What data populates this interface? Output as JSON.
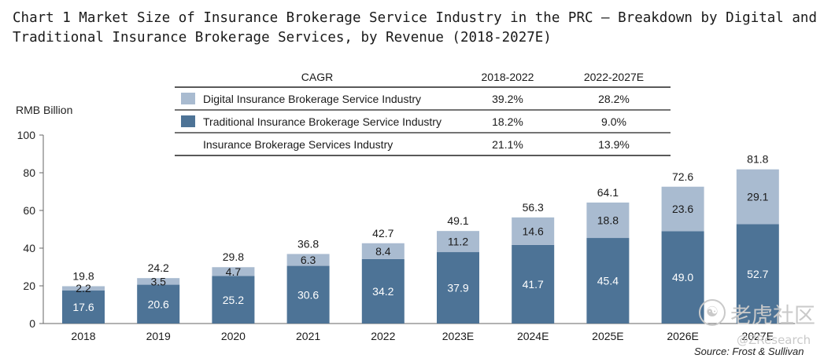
{
  "chart_data": {
    "type": "bar",
    "stacked": true,
    "title": "Chart 1 Market Size of Insurance Brokerage Service Industry in the PRC — Breakdown by Digital and Traditional Insurance Brokerage Services, by Revenue (2018-2027E)",
    "ylabel": "RMB Billion",
    "ylim": [
      0,
      100
    ],
    "yticks": [
      0,
      20,
      40,
      60,
      80,
      100
    ],
    "grid": false,
    "categories": [
      "2018",
      "2019",
      "2020",
      "2021",
      "2022",
      "2023E",
      "2024E",
      "2025E",
      "2026E",
      "2027E"
    ],
    "series": [
      {
        "name": "Traditional Insurance Brokerage Service Industry",
        "color": "#4d7396",
        "values": [
          17.6,
          20.6,
          25.2,
          30.6,
          34.2,
          37.9,
          41.7,
          45.4,
          49.0,
          52.7
        ]
      },
      {
        "name": "Digital Insurance Brokerage Service Industry",
        "color": "#a9bbd0",
        "values": [
          2.2,
          3.5,
          4.7,
          6.3,
          8.4,
          11.2,
          14.6,
          18.8,
          23.6,
          29.1
        ]
      }
    ],
    "totals": [
      19.8,
      24.2,
      29.8,
      36.8,
      42.7,
      49.1,
      56.3,
      64.1,
      72.6,
      81.8
    ],
    "cagr_table": {
      "header": [
        "CAGR",
        "2018-2022",
        "2022-2027E"
      ],
      "rows": [
        {
          "label": "Digital Insurance Brokerage Service Industry",
          "swatch": "#a9bbd0",
          "values": [
            "39.2%",
            "28.2%"
          ]
        },
        {
          "label": "Traditional Insurance Brokerage Service Industry",
          "swatch": "#4d7396",
          "values": [
            "18.2%",
            "9.0%"
          ]
        },
        {
          "label": "Insurance Brokerage Services Industry",
          "swatch": "",
          "values": [
            "21.1%",
            "13.9%"
          ]
        }
      ]
    },
    "source": "Source: Frost & Sullivan"
  },
  "watermark": {
    "brand": "老虎社区",
    "handle": "@ZResearch"
  }
}
